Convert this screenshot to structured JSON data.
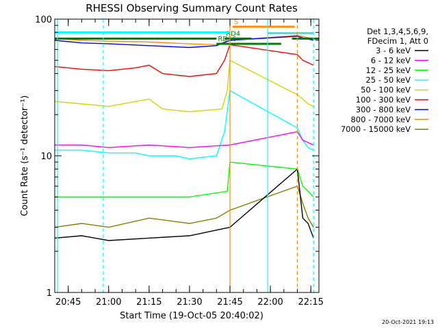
{
  "chart_data": {
    "type": "line",
    "title": "RHESSI Observing Summary Count Rates",
    "xlabel": "Start Time (19-Oct-05 20:40:02)",
    "ylabel": "Count Rate (s⁻¹ detector⁻¹)",
    "y_scale": "log",
    "ylim": [
      1,
      100
    ],
    "y_ticks": [
      {
        "value": 1,
        "label": "1"
      },
      {
        "value": 10,
        "label": "10"
      },
      {
        "value": 100,
        "label": "100"
      }
    ],
    "xlim": [
      "20:40",
      "22:18"
    ],
    "x_ticks": [
      "20:45",
      "21:00",
      "21:15",
      "21:30",
      "21:45",
      "22:00",
      "22:15"
    ],
    "legend_header": [
      "Det 1,3,4,5,6,9,",
      "FDecim 1, Att 0"
    ],
    "legend_placement": "right",
    "series": [
      {
        "name": "3 - 6 keV",
        "color": "#000000",
        "points": [
          [
            "20:40",
            2.5
          ],
          [
            "20:50",
            2.6
          ],
          [
            "21:00",
            2.4
          ],
          [
            "21:15",
            2.5
          ],
          [
            "21:30",
            2.6
          ],
          [
            "21:45",
            3.0
          ],
          [
            "22:10",
            8.0
          ],
          [
            "22:12",
            3.5
          ],
          [
            "22:14",
            3.2
          ],
          [
            "22:16",
            2.5
          ]
        ]
      },
      {
        "name": "6 - 12 keV",
        "color": "#ff00ff",
        "points": [
          [
            "20:40",
            12
          ],
          [
            "20:50",
            12
          ],
          [
            "21:00",
            11.5
          ],
          [
            "21:15",
            12
          ],
          [
            "21:30",
            11.5
          ],
          [
            "21:45",
            12
          ],
          [
            "22:10",
            15
          ],
          [
            "22:12",
            13
          ],
          [
            "22:14",
            12.5
          ],
          [
            "22:16",
            12
          ]
        ]
      },
      {
        "name": "12 - 25 keV",
        "color": "#00ff00",
        "points": [
          [
            "20:40",
            5
          ],
          [
            "20:50",
            5
          ],
          [
            "21:00",
            5
          ],
          [
            "21:15",
            5
          ],
          [
            "21:30",
            5
          ],
          [
            "21:44",
            5.5
          ],
          [
            "21:45",
            9
          ],
          [
            "22:10",
            8
          ],
          [
            "22:12",
            6
          ],
          [
            "22:14",
            5.5
          ],
          [
            "22:16",
            5
          ]
        ]
      },
      {
        "name": "25 - 50 keV",
        "color": "#00ffff",
        "points": [
          [
            "20:40",
            11
          ],
          [
            "20:50",
            11
          ],
          [
            "21:00",
            10.5
          ],
          [
            "21:10",
            10.5
          ],
          [
            "21:15",
            10
          ],
          [
            "21:25",
            10
          ],
          [
            "21:30",
            9.5
          ],
          [
            "21:40",
            10
          ],
          [
            "21:43",
            15
          ],
          [
            "21:45",
            30
          ],
          [
            "22:10",
            16
          ],
          [
            "22:12",
            13
          ],
          [
            "22:14",
            11.5
          ],
          [
            "22:16",
            11
          ]
        ]
      },
      {
        "name": "50 - 100 keV",
        "color": "#d4d400",
        "points": [
          [
            "20:40",
            25
          ],
          [
            "20:50",
            24
          ],
          [
            "21:00",
            23
          ],
          [
            "21:10",
            25
          ],
          [
            "21:15",
            26
          ],
          [
            "21:20",
            22
          ],
          [
            "21:30",
            21
          ],
          [
            "21:42",
            22
          ],
          [
            "21:44",
            30
          ],
          [
            "21:45",
            50
          ],
          [
            "22:10",
            28
          ],
          [
            "22:12",
            26
          ],
          [
            "22:14",
            24
          ],
          [
            "22:16",
            23
          ]
        ]
      },
      {
        "name": "100 - 300 keV",
        "color": "#ff0000",
        "points": [
          [
            "20:40",
            45
          ],
          [
            "20:50",
            43
          ],
          [
            "21:00",
            42
          ],
          [
            "21:10",
            44
          ],
          [
            "21:15",
            46
          ],
          [
            "21:20",
            40
          ],
          [
            "21:30",
            38
          ],
          [
            "21:40",
            40
          ],
          [
            "21:43",
            50
          ],
          [
            "21:45",
            65
          ],
          [
            "22:10",
            55
          ],
          [
            "22:12",
            50
          ],
          [
            "22:14",
            48
          ],
          [
            "22:16",
            46
          ]
        ]
      },
      {
        "name": "300 - 800 keV",
        "color": "#0000ff",
        "points": [
          [
            "20:40",
            70
          ],
          [
            "20:50",
            67
          ],
          [
            "21:00",
            66
          ],
          [
            "21:15",
            64
          ],
          [
            "21:30",
            62
          ],
          [
            "21:40",
            64
          ],
          [
            "21:45",
            70
          ],
          [
            "22:10",
            75
          ],
          [
            "22:13",
            72
          ],
          [
            "22:16",
            70
          ]
        ]
      },
      {
        "name": "800 - 7000 keV",
        "color": "#ff8c00",
        "points": [
          [
            "20:40",
            72
          ],
          [
            "20:50",
            70
          ],
          [
            "21:00",
            69
          ],
          [
            "21:15",
            68
          ],
          [
            "21:30",
            66
          ],
          [
            "21:40",
            65
          ],
          [
            "21:45",
            70
          ],
          [
            "22:10",
            76
          ],
          [
            "22:13",
            74
          ],
          [
            "22:16",
            72
          ]
        ]
      },
      {
        "name": "7000 - 15000 keV",
        "color": "#808000",
        "points": [
          [
            "20:40",
            3.0
          ],
          [
            "20:50",
            3.2
          ],
          [
            "21:00",
            3.0
          ],
          [
            "21:15",
            3.5
          ],
          [
            "21:30",
            3.2
          ],
          [
            "21:40",
            3.5
          ],
          [
            "21:45",
            4.0
          ],
          [
            "22:10",
            6.0
          ],
          [
            "22:12",
            4.5
          ],
          [
            "22:14",
            3.5
          ],
          [
            "22:16",
            3.0
          ]
        ]
      }
    ],
    "vertical_markers": [
      {
        "time": "20:41",
        "color": "#00ffff",
        "style": "solid"
      },
      {
        "time": "20:58",
        "color": "#00ffff",
        "style": "dashed"
      },
      {
        "time": "21:45",
        "color": "#ff8c00",
        "style": "solid"
      },
      {
        "time": "21:59",
        "color": "#00ffff",
        "style": "solid"
      },
      {
        "time": "22:10",
        "color": "#ff8c00",
        "style": "dashed"
      },
      {
        "time": "22:16",
        "color": "#00ffff",
        "style": "dashed"
      }
    ],
    "flag_bars": [
      {
        "label": "",
        "color": "#008000",
        "start": "20:40",
        "end": "21:40",
        "value": 72
      },
      {
        "label": "RD4",
        "color": "#008000",
        "start": "21:43",
        "end": "21:53",
        "value": 72
      },
      {
        "label": "",
        "color": "#008000",
        "start": "22:08",
        "end": "22:18",
        "value": 72
      },
      {
        "label": "RD16",
        "color": "#008000",
        "start": "21:40",
        "end": "21:56",
        "value": 66
      },
      {
        "label": "",
        "color": "#008000",
        "start": "21:56",
        "end": "22:04",
        "value": 66
      },
      {
        "label": "S",
        "color": "#ff8c00",
        "start": "21:46",
        "end": "22:09",
        "value": 88
      },
      {
        "label": "",
        "color": "#00ffff",
        "start": "20:40",
        "end": "21:45",
        "value": 80
      },
      {
        "label": "",
        "color": "#00ffff",
        "start": "21:59",
        "end": "22:16",
        "value": 79
      }
    ]
  },
  "timestamp": "20-Oct-2021 19:13"
}
